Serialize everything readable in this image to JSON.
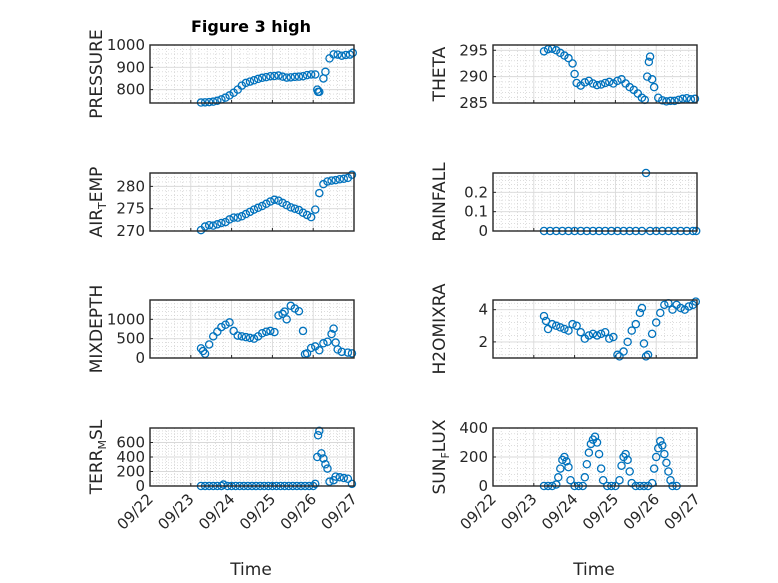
{
  "title": "Figure 3 high",
  "colors": {
    "marker": "#0072BD",
    "axes": "#262626",
    "grid": "#c8c8c8",
    "background": "#ffffff"
  },
  "xaxis": {
    "label": "Time",
    "range": [
      "09/22",
      "09/27"
    ],
    "ticks": [
      "09/22",
      "09/23",
      "09/24",
      "09/25",
      "09/26",
      "09/27"
    ]
  },
  "chart_data": [
    {
      "type": "scatter",
      "ylabel": "PRESSURE",
      "ylim": [
        740,
        1000
      ],
      "yticks": [
        800,
        900,
        1000
      ],
      "grid": "on",
      "minor_grid": "on",
      "points": [
        [
          1.25,
          742
        ],
        [
          1.35,
          743
        ],
        [
          1.45,
          744
        ],
        [
          1.55,
          746
        ],
        [
          1.65,
          750
        ],
        [
          1.75,
          756
        ],
        [
          1.85,
          764
        ],
        [
          1.95,
          774
        ],
        [
          2.05,
          786
        ],
        [
          2.15,
          800
        ],
        [
          2.25,
          818
        ],
        [
          2.35,
          830
        ],
        [
          2.45,
          836
        ],
        [
          2.55,
          842
        ],
        [
          2.65,
          848
        ],
        [
          2.75,
          853
        ],
        [
          2.85,
          856
        ],
        [
          2.95,
          860
        ],
        [
          3.05,
          861
        ],
        [
          3.15,
          863
        ],
        [
          3.25,
          858
        ],
        [
          3.35,
          854
        ],
        [
          3.45,
          855
        ],
        [
          3.55,
          857
        ],
        [
          3.65,
          858
        ],
        [
          3.75,
          860
        ],
        [
          3.85,
          865
        ],
        [
          3.95,
          868
        ],
        [
          4.05,
          868
        ],
        [
          4.1,
          800
        ],
        [
          4.12,
          790
        ],
        [
          4.15,
          790
        ],
        [
          4.25,
          850
        ],
        [
          4.3,
          880
        ],
        [
          4.4,
          940
        ],
        [
          4.5,
          958
        ],
        [
          4.6,
          957
        ],
        [
          4.7,
          952
        ],
        [
          4.8,
          955
        ],
        [
          4.9,
          957
        ],
        [
          4.97,
          965
        ]
      ]
    },
    {
      "type": "scatter",
      "ylabel": "THETA",
      "ylim": [
        285,
        296
      ],
      "yticks": [
        285,
        290,
        295
      ],
      "grid": "on",
      "minor_grid": "on",
      "points": [
        [
          1.25,
          294.8
        ],
        [
          1.35,
          295.2
        ],
        [
          1.45,
          295.3
        ],
        [
          1.55,
          295
        ],
        [
          1.65,
          294.5
        ],
        [
          1.75,
          294
        ],
        [
          1.85,
          293.5
        ],
        [
          1.95,
          292.5
        ],
        [
          2.0,
          290.5
        ],
        [
          2.05,
          288.8
        ],
        [
          2.15,
          288.3
        ],
        [
          2.25,
          288.9
        ],
        [
          2.35,
          289.2
        ],
        [
          2.45,
          288.7
        ],
        [
          2.55,
          288.4
        ],
        [
          2.65,
          288.5
        ],
        [
          2.75,
          288.8
        ],
        [
          2.85,
          289
        ],
        [
          2.95,
          288.7
        ],
        [
          3.05,
          289.2
        ],
        [
          3.15,
          289.5
        ],
        [
          3.25,
          288.7
        ],
        [
          3.35,
          288
        ],
        [
          3.45,
          287.5
        ],
        [
          3.55,
          286.8
        ],
        [
          3.65,
          286
        ],
        [
          3.72,
          285.6
        ],
        [
          3.78,
          290
        ],
        [
          3.82,
          292.8
        ],
        [
          3.85,
          293.8
        ],
        [
          3.9,
          289.5
        ],
        [
          3.95,
          288
        ],
        [
          4.05,
          286
        ],
        [
          4.15,
          285.5
        ],
        [
          4.25,
          285.3
        ],
        [
          4.35,
          285.4
        ],
        [
          4.45,
          285.4
        ],
        [
          4.55,
          285.6
        ],
        [
          4.65,
          285.8
        ],
        [
          4.75,
          285.9
        ],
        [
          4.85,
          285.7
        ],
        [
          4.95,
          285.8
        ]
      ]
    },
    {
      "type": "scatter",
      "ylabel": "AIR_TEMP",
      "ylim": [
        270,
        283
      ],
      "yticks": [
        270,
        275,
        280
      ],
      "grid": "on",
      "minor_grid": "on",
      "points": [
        [
          1.25,
          270.2
        ],
        [
          1.35,
          271
        ],
        [
          1.45,
          271.3
        ],
        [
          1.55,
          271.2
        ],
        [
          1.65,
          271.5
        ],
        [
          1.75,
          271.8
        ],
        [
          1.85,
          272
        ],
        [
          1.95,
          272.6
        ],
        [
          2.05,
          273
        ],
        [
          2.15,
          273
        ],
        [
          2.25,
          273.3
        ],
        [
          2.35,
          273.8
        ],
        [
          2.45,
          274.3
        ],
        [
          2.55,
          274.8
        ],
        [
          2.65,
          275.2
        ],
        [
          2.75,
          275.6
        ],
        [
          2.85,
          276.1
        ],
        [
          2.95,
          276.6
        ],
        [
          3.05,
          277
        ],
        [
          3.15,
          276.8
        ],
        [
          3.25,
          276.3
        ],
        [
          3.35,
          275.8
        ],
        [
          3.45,
          275.3
        ],
        [
          3.55,
          275
        ],
        [
          3.65,
          274.7
        ],
        [
          3.75,
          274.1
        ],
        [
          3.85,
          273.6
        ],
        [
          3.95,
          273.1
        ],
        [
          4.05,
          274.8
        ],
        [
          4.15,
          278.5
        ],
        [
          4.25,
          280.5
        ],
        [
          4.35,
          281.1
        ],
        [
          4.45,
          281.3
        ],
        [
          4.55,
          281.4
        ],
        [
          4.65,
          281.6
        ],
        [
          4.75,
          281.7
        ],
        [
          4.85,
          281.9
        ],
        [
          4.95,
          282.6
        ]
      ]
    },
    {
      "type": "scatter",
      "ylabel": "RAINFALL",
      "ylim": [
        0,
        0.3
      ],
      "yticks": [
        0,
        0.1,
        0.2
      ],
      "grid": "on",
      "minor_grid": "on",
      "points": [
        [
          1.25,
          0
        ],
        [
          1.4,
          0
        ],
        [
          1.55,
          0
        ],
        [
          1.7,
          0
        ],
        [
          1.85,
          0
        ],
        [
          2.0,
          0
        ],
        [
          2.15,
          0
        ],
        [
          2.3,
          0
        ],
        [
          2.45,
          0
        ],
        [
          2.6,
          0
        ],
        [
          2.75,
          0
        ],
        [
          2.9,
          0
        ],
        [
          3.05,
          0
        ],
        [
          3.2,
          0
        ],
        [
          3.35,
          0
        ],
        [
          3.5,
          0
        ],
        [
          3.65,
          0
        ],
        [
          3.75,
          0.3
        ],
        [
          3.85,
          0
        ],
        [
          4.0,
          0
        ],
        [
          4.15,
          0
        ],
        [
          4.3,
          0
        ],
        [
          4.45,
          0
        ],
        [
          4.6,
          0
        ],
        [
          4.75,
          0
        ],
        [
          4.9,
          0
        ],
        [
          4.98,
          0
        ]
      ]
    },
    {
      "type": "scatter",
      "ylabel": "MIXDEPTH",
      "ylim": [
        0,
        1500
      ],
      "yticks": [
        0,
        500,
        1000
      ],
      "grid": "on",
      "minor_grid": "on",
      "points": [
        [
          1.25,
          250
        ],
        [
          1.3,
          180
        ],
        [
          1.35,
          110
        ],
        [
          1.45,
          350
        ],
        [
          1.55,
          560
        ],
        [
          1.65,
          680
        ],
        [
          1.75,
          800
        ],
        [
          1.85,
          860
        ],
        [
          1.95,
          920
        ],
        [
          2.05,
          700
        ],
        [
          2.15,
          580
        ],
        [
          2.25,
          560
        ],
        [
          2.35,
          540
        ],
        [
          2.45,
          520
        ],
        [
          2.55,
          500
        ],
        [
          2.65,
          560
        ],
        [
          2.75,
          640
        ],
        [
          2.85,
          680
        ],
        [
          2.95,
          700
        ],
        [
          3.05,
          670
        ],
        [
          3.15,
          1100
        ],
        [
          3.25,
          1140
        ],
        [
          3.3,
          1200
        ],
        [
          3.35,
          1000
        ],
        [
          3.45,
          1350
        ],
        [
          3.55,
          1280
        ],
        [
          3.65,
          1210
        ],
        [
          3.75,
          700
        ],
        [
          3.8,
          100
        ],
        [
          3.85,
          120
        ],
        [
          3.95,
          260
        ],
        [
          4.05,
          300
        ],
        [
          4.15,
          200
        ],
        [
          4.25,
          380
        ],
        [
          4.35,
          420
        ],
        [
          4.45,
          620
        ],
        [
          4.5,
          760
        ],
        [
          4.55,
          400
        ],
        [
          4.6,
          220
        ],
        [
          4.7,
          160
        ],
        [
          4.85,
          140
        ],
        [
          4.95,
          120
        ]
      ]
    },
    {
      "type": "scatter",
      "ylabel": "H2OMIXRA",
      "ylim": [
        1,
        4.6
      ],
      "yticks": [
        2,
        4
      ],
      "grid": "on",
      "minor_grid": "on",
      "points": [
        [
          1.25,
          3.6
        ],
        [
          1.3,
          3.3
        ],
        [
          1.35,
          2.8
        ],
        [
          1.45,
          3.1
        ],
        [
          1.55,
          3
        ],
        [
          1.65,
          2.9
        ],
        [
          1.75,
          2.8
        ],
        [
          1.85,
          2.7
        ],
        [
          1.95,
          3.1
        ],
        [
          2.05,
          3
        ],
        [
          2.15,
          2.6
        ],
        [
          2.25,
          2.2
        ],
        [
          2.35,
          2.4
        ],
        [
          2.45,
          2.5
        ],
        [
          2.55,
          2.4
        ],
        [
          2.65,
          2.5
        ],
        [
          2.75,
          2.6
        ],
        [
          2.85,
          2.2
        ],
        [
          2.95,
          2.3
        ],
        [
          3.05,
          1.2
        ],
        [
          3.1,
          1.1
        ],
        [
          3.2,
          1.4
        ],
        [
          3.3,
          2
        ],
        [
          3.4,
          2.7
        ],
        [
          3.5,
          3.1
        ],
        [
          3.6,
          3.8
        ],
        [
          3.65,
          4.1
        ],
        [
          3.7,
          1.9
        ],
        [
          3.75,
          1.1
        ],
        [
          3.8,
          1.2
        ],
        [
          3.9,
          2.5
        ],
        [
          4.0,
          3.2
        ],
        [
          4.1,
          3.8
        ],
        [
          4.2,
          4.3
        ],
        [
          4.3,
          4.4
        ],
        [
          4.4,
          4
        ],
        [
          4.5,
          4.3
        ],
        [
          4.6,
          4.1
        ],
        [
          4.7,
          4
        ],
        [
          4.8,
          4.2
        ],
        [
          4.9,
          4.3
        ],
        [
          4.97,
          4.5
        ]
      ]
    },
    {
      "type": "scatter",
      "ylabel": "TERR_MSL",
      "ylim": [
        0,
        800
      ],
      "yticks": [
        0,
        200,
        400,
        600
      ],
      "grid": "on",
      "minor_grid": "on",
      "points": [
        [
          1.25,
          0
        ],
        [
          1.35,
          0
        ],
        [
          1.45,
          0
        ],
        [
          1.55,
          0
        ],
        [
          1.65,
          0
        ],
        [
          1.75,
          0
        ],
        [
          1.8,
          20
        ],
        [
          1.9,
          0
        ],
        [
          2.0,
          0
        ],
        [
          2.1,
          0
        ],
        [
          2.2,
          0
        ],
        [
          2.3,
          0
        ],
        [
          2.4,
          0
        ],
        [
          2.5,
          0
        ],
        [
          2.6,
          0
        ],
        [
          2.7,
          0
        ],
        [
          2.8,
          0
        ],
        [
          2.9,
          0
        ],
        [
          3.0,
          0
        ],
        [
          3.1,
          0
        ],
        [
          3.2,
          0
        ],
        [
          3.3,
          0
        ],
        [
          3.4,
          0
        ],
        [
          3.5,
          0
        ],
        [
          3.6,
          0
        ],
        [
          3.7,
          0
        ],
        [
          3.8,
          0
        ],
        [
          3.9,
          0
        ],
        [
          4.0,
          0
        ],
        [
          4.05,
          30
        ],
        [
          4.1,
          400
        ],
        [
          4.12,
          700
        ],
        [
          4.15,
          760
        ],
        [
          4.2,
          450
        ],
        [
          4.25,
          380
        ],
        [
          4.3,
          300
        ],
        [
          4.35,
          240
        ],
        [
          4.4,
          60
        ],
        [
          4.5,
          80
        ],
        [
          4.55,
          130
        ],
        [
          4.65,
          120
        ],
        [
          4.75,
          110
        ],
        [
          4.85,
          100
        ],
        [
          4.95,
          30
        ]
      ]
    },
    {
      "type": "scatter",
      "ylabel": "SUN_FLUX",
      "ylim": [
        0,
        400
      ],
      "yticks": [
        0,
        200,
        400
      ],
      "grid": "on",
      "minor_grid": "on",
      "points": [
        [
          1.25,
          0
        ],
        [
          1.35,
          0
        ],
        [
          1.45,
          0
        ],
        [
          1.55,
          10
        ],
        [
          1.6,
          60
        ],
        [
          1.65,
          120
        ],
        [
          1.7,
          180
        ],
        [
          1.75,
          200
        ],
        [
          1.8,
          170
        ],
        [
          1.85,
          130
        ],
        [
          1.9,
          40
        ],
        [
          2.0,
          0
        ],
        [
          2.1,
          0
        ],
        [
          2.2,
          0
        ],
        [
          2.25,
          60
        ],
        [
          2.3,
          150
        ],
        [
          2.35,
          230
        ],
        [
          2.4,
          290
        ],
        [
          2.45,
          320
        ],
        [
          2.5,
          340
        ],
        [
          2.55,
          300
        ],
        [
          2.6,
          220
        ],
        [
          2.65,
          120
        ],
        [
          2.7,
          40
        ],
        [
          2.8,
          0
        ],
        [
          2.9,
          0
        ],
        [
          3.0,
          0
        ],
        [
          3.1,
          40
        ],
        [
          3.15,
          140
        ],
        [
          3.2,
          200
        ],
        [
          3.25,
          220
        ],
        [
          3.3,
          180
        ],
        [
          3.35,
          100
        ],
        [
          3.4,
          20
        ],
        [
          3.5,
          0
        ],
        [
          3.6,
          0
        ],
        [
          3.7,
          0
        ],
        [
          3.8,
          0
        ],
        [
          3.9,
          20
        ],
        [
          3.95,
          120
        ],
        [
          4.0,
          200
        ],
        [
          4.05,
          260
        ],
        [
          4.1,
          310
        ],
        [
          4.15,
          280
        ],
        [
          4.2,
          220
        ],
        [
          4.25,
          160
        ],
        [
          4.3,
          100
        ],
        [
          4.35,
          40
        ],
        [
          4.4,
          0
        ],
        [
          4.5,
          0
        ]
      ]
    }
  ]
}
